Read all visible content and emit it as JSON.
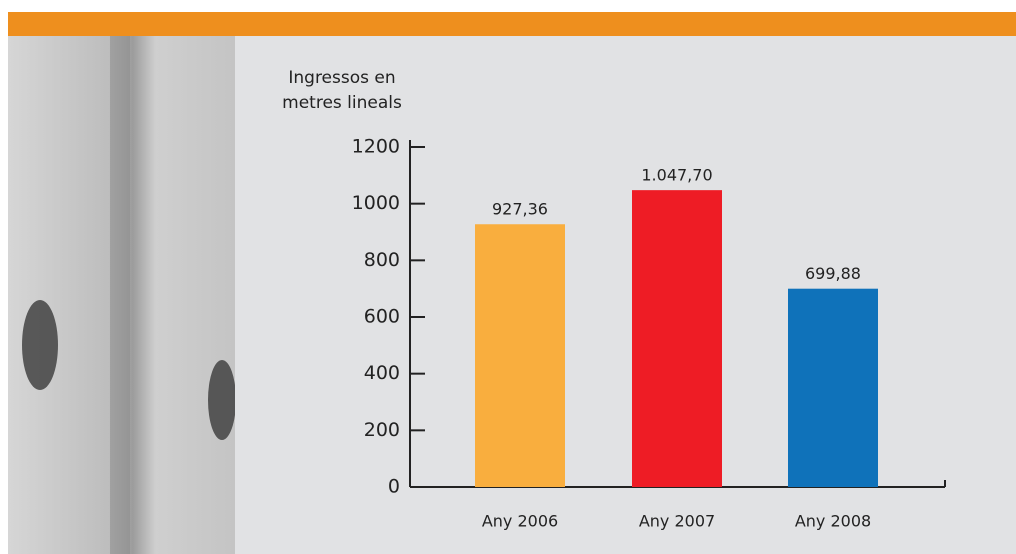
{
  "chart_data": {
    "type": "bar",
    "ylabel": "Ingressos en metres lineals",
    "categories": [
      "Any 2006",
      "Any 2007",
      "Any 2008"
    ],
    "values": [
      927.36,
      1047.7,
      699.88
    ],
    "value_labels": [
      "927,36",
      "1.047,70",
      "699,88"
    ],
    "colors": [
      "#f9ae3e",
      "#ee1c25",
      "#0f72ba"
    ],
    "ylim": [
      0,
      1200
    ],
    "yticks": [
      0,
      200,
      400,
      600,
      800,
      1000,
      1200
    ],
    "grid": false
  }
}
